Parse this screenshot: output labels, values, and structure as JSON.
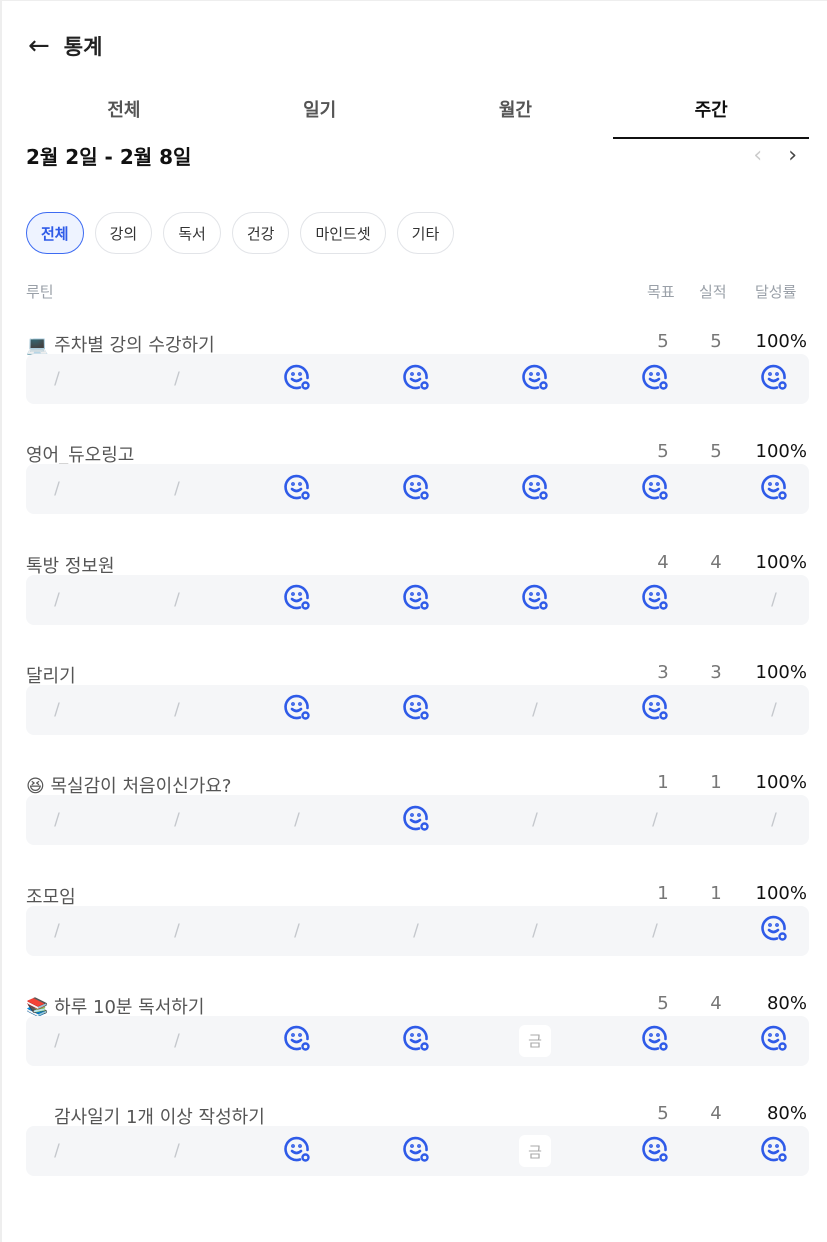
{
  "header": {
    "title": "통계"
  },
  "tabs": [
    {
      "label": "전체"
    },
    {
      "label": "일기"
    },
    {
      "label": "월간"
    },
    {
      "label": "주간",
      "active": true
    }
  ],
  "date_range": "2월 2일 - 2월 8일",
  "categories": [
    {
      "label": "전체",
      "active": true
    },
    {
      "label": "강의"
    },
    {
      "label": "독서"
    },
    {
      "label": "건강"
    },
    {
      "label": "마인드셋"
    },
    {
      "label": "기타"
    }
  ],
  "columns": {
    "routine": "루틴",
    "goal": "목표",
    "actual": "실적",
    "rate": "달성률"
  },
  "accent": "#2f5be8",
  "routines": [
    {
      "emoji": "💻",
      "name": "주차별 강의 수강하기",
      "goal": "5",
      "actual": "5",
      "rate": "100%",
      "days": [
        "/",
        "/",
        "o",
        "o",
        "o",
        "o",
        "o"
      ]
    },
    {
      "emoji": "",
      "name": "영어_듀오링고",
      "goal": "5",
      "actual": "5",
      "rate": "100%",
      "days": [
        "/",
        "/",
        "o",
        "o",
        "o",
        "o",
        "o"
      ]
    },
    {
      "emoji": "",
      "name": "톡방 정보원",
      "goal": "4",
      "actual": "4",
      "rate": "100%",
      "days": [
        "/",
        "/",
        "o",
        "o",
        "o",
        "o",
        "/"
      ]
    },
    {
      "emoji": "",
      "name": "달리기",
      "goal": "3",
      "actual": "3",
      "rate": "100%",
      "days": [
        "/",
        "/",
        "o",
        "o",
        "/",
        "o",
        "/"
      ]
    },
    {
      "emoji": "😆",
      "name": "목실감이 처음이신가요?",
      "goal": "1",
      "actual": "1",
      "rate": "100%",
      "days": [
        "/",
        "/",
        "/",
        "o",
        "/",
        "/",
        "/"
      ]
    },
    {
      "emoji": "",
      "name": "조모임",
      "goal": "1",
      "actual": "1",
      "rate": "100%",
      "days": [
        "/",
        "/",
        "/",
        "/",
        "/",
        "/",
        "o"
      ]
    },
    {
      "emoji": "📚",
      "name": "하루 10분 독서하기",
      "goal": "5",
      "actual": "4",
      "rate": "80%",
      "days": [
        "/",
        "/",
        "o",
        "o",
        "금",
        "o",
        "o"
      ]
    },
    {
      "emoji": " ",
      "name": "감사일기 1개 이상 작성하기",
      "goal": "5",
      "actual": "4",
      "rate": "80%",
      "days": [
        "/",
        "/",
        "o",
        "o",
        "금",
        "o",
        "o"
      ]
    }
  ]
}
